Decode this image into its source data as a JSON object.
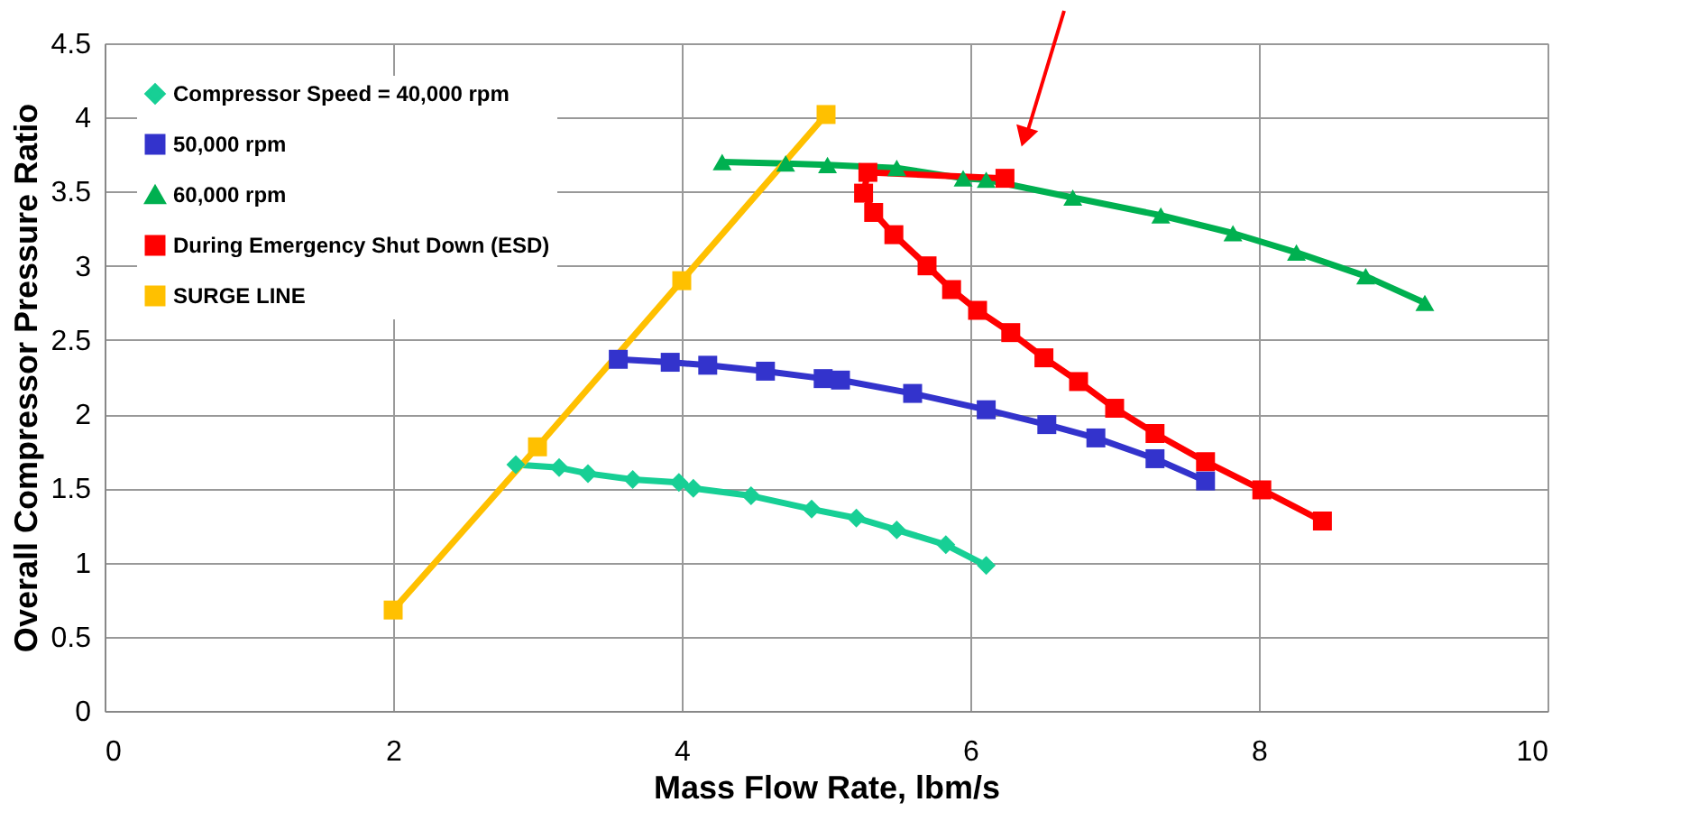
{
  "chart_data": {
    "type": "line",
    "xlabel": "Mass Flow Rate,  lbm/s",
    "ylabel": "Overall Compressor  Pressure  Ratio",
    "xlim": [
      0,
      10
    ],
    "xticks": [
      0,
      2,
      4,
      6,
      8,
      10
    ],
    "ylim": [
      0,
      4.5
    ],
    "yticks": [
      0,
      0.5,
      1,
      1.5,
      2,
      2.5,
      3,
      3.5,
      4,
      4.5
    ],
    "grid": true,
    "legend": "top left",
    "series": [
      {
        "name": "Compressor Speed  = 40,000  rpm",
        "color": "#17cf95",
        "marker": "diamond",
        "x": [
          2.85,
          3.15,
          3.35,
          3.66,
          3.98,
          4.08,
          4.48,
          4.9,
          5.21,
          5.49,
          5.83,
          6.11
        ],
        "values": [
          1.66,
          1.64,
          1.6,
          1.56,
          1.54,
          1.5,
          1.45,
          1.36,
          1.3,
          1.22,
          1.12,
          0.98
        ]
      },
      {
        "name": "50,000  rpm",
        "color": "#3333cc",
        "marker": "square",
        "x": [
          3.56,
          3.92,
          4.18,
          4.58,
          4.98,
          5.1,
          5.6,
          6.11,
          6.53,
          6.87,
          7.28,
          7.63
        ],
        "values": [
          2.37,
          2.35,
          2.33,
          2.29,
          2.24,
          2.23,
          2.14,
          2.03,
          1.93,
          1.84,
          1.7,
          1.55
        ]
      },
      {
        "name": "60,000  rpm",
        "color": "#00b050",
        "marker": "triangle",
        "x": [
          4.28,
          4.72,
          5.01,
          5.49,
          5.95,
          6.11,
          6.71,
          7.32,
          7.82,
          8.26,
          8.74,
          9.15
        ],
        "values": [
          3.7,
          3.69,
          3.68,
          3.66,
          3.59,
          3.58,
          3.46,
          3.34,
          3.22,
          3.09,
          2.93,
          2.75
        ]
      },
      {
        "name": "During Emergency Shut Down (ESD)",
        "color": "#ff0000",
        "marker": "square",
        "x": [
          6.24,
          5.29,
          5.26,
          5.33,
          5.47,
          5.7,
          5.87,
          6.05,
          6.28,
          6.51,
          6.75,
          7.0,
          7.28,
          7.63,
          8.02,
          8.44
        ],
        "values": [
          3.59,
          3.63,
          3.49,
          3.36,
          3.21,
          3.0,
          2.84,
          2.7,
          2.55,
          2.38,
          2.22,
          2.04,
          1.87,
          1.68,
          1.49,
          1.28
        ]
      },
      {
        "name": "SURGE LINE",
        "color": "#ffc000",
        "marker": "square",
        "x": [
          2,
          3,
          4,
          5
        ],
        "values": [
          0.68,
          1.78,
          2.9,
          4.02
        ]
      }
    ]
  }
}
